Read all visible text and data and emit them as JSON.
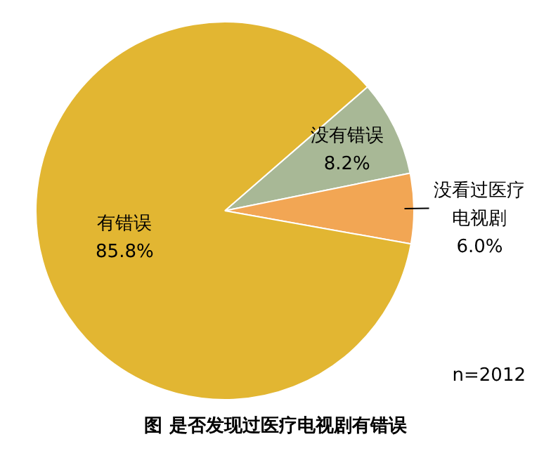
{
  "chart_data": {
    "type": "pie",
    "title": "图 是否发现过医疗电视剧有错误",
    "categories": [
      "没有错误",
      "没看过医疗电视剧",
      "有错误"
    ],
    "values": [
      8.2,
      6.0,
      85.8
    ],
    "value_labels": [
      "8.2%",
      "6.0%",
      "85.8%"
    ],
    "colors": [
      "#a8b896",
      "#f2a654",
      "#e2b632"
    ],
    "annotations": [
      "n=2012"
    ],
    "legend": false
  }
}
